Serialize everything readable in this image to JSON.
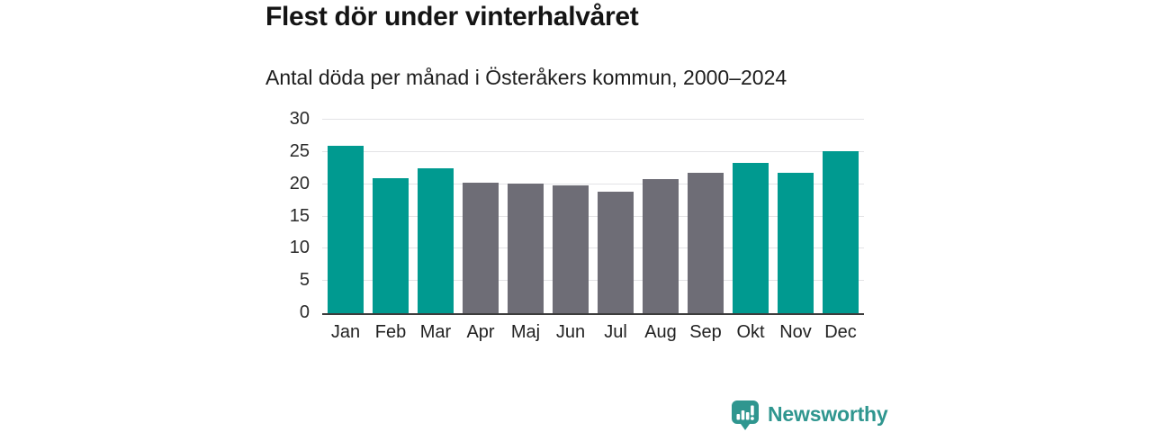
{
  "header": {
    "title": "Flest dör under vinterhalvåret",
    "subtitle": "Antal döda per månad i Österåkers kommun, 2000–2024"
  },
  "chart_data": {
    "type": "bar",
    "categories": [
      "Jan",
      "Feb",
      "Mar",
      "Apr",
      "Maj",
      "Jun",
      "Jul",
      "Aug",
      "Sep",
      "Okt",
      "Nov",
      "Dec"
    ],
    "values": [
      26.0,
      21.0,
      22.5,
      20.2,
      20.1,
      19.8,
      18.9,
      20.8,
      21.8,
      23.3,
      21.8,
      25.1
    ],
    "colors": [
      "#009a90",
      "#009a90",
      "#009a90",
      "#6e6d76",
      "#6e6d76",
      "#6e6d76",
      "#6e6d76",
      "#6e6d76",
      "#6e6d76",
      "#009a90",
      "#009a90",
      "#009a90"
    ],
    "title": "Flest dör under vinterhalvåret",
    "subtitle": "Antal döda per månad i Österåkers kommun, 2000–2024",
    "xlabel": "",
    "ylabel": "",
    "ylim": [
      0,
      30
    ],
    "yticks": [
      0,
      5,
      10,
      15,
      20,
      25,
      30
    ],
    "grid": true,
    "legend": false,
    "winter_color": "#009a90",
    "summer_color": "#6e6d76",
    "gridline_color": "#e3e3e6",
    "axis_color": "#3c3c3c"
  },
  "footer": {
    "brand": "Newsworthy",
    "brand_color": "#2f968f",
    "logo_icon": "bar-chart-speech-bubble-icon"
  }
}
